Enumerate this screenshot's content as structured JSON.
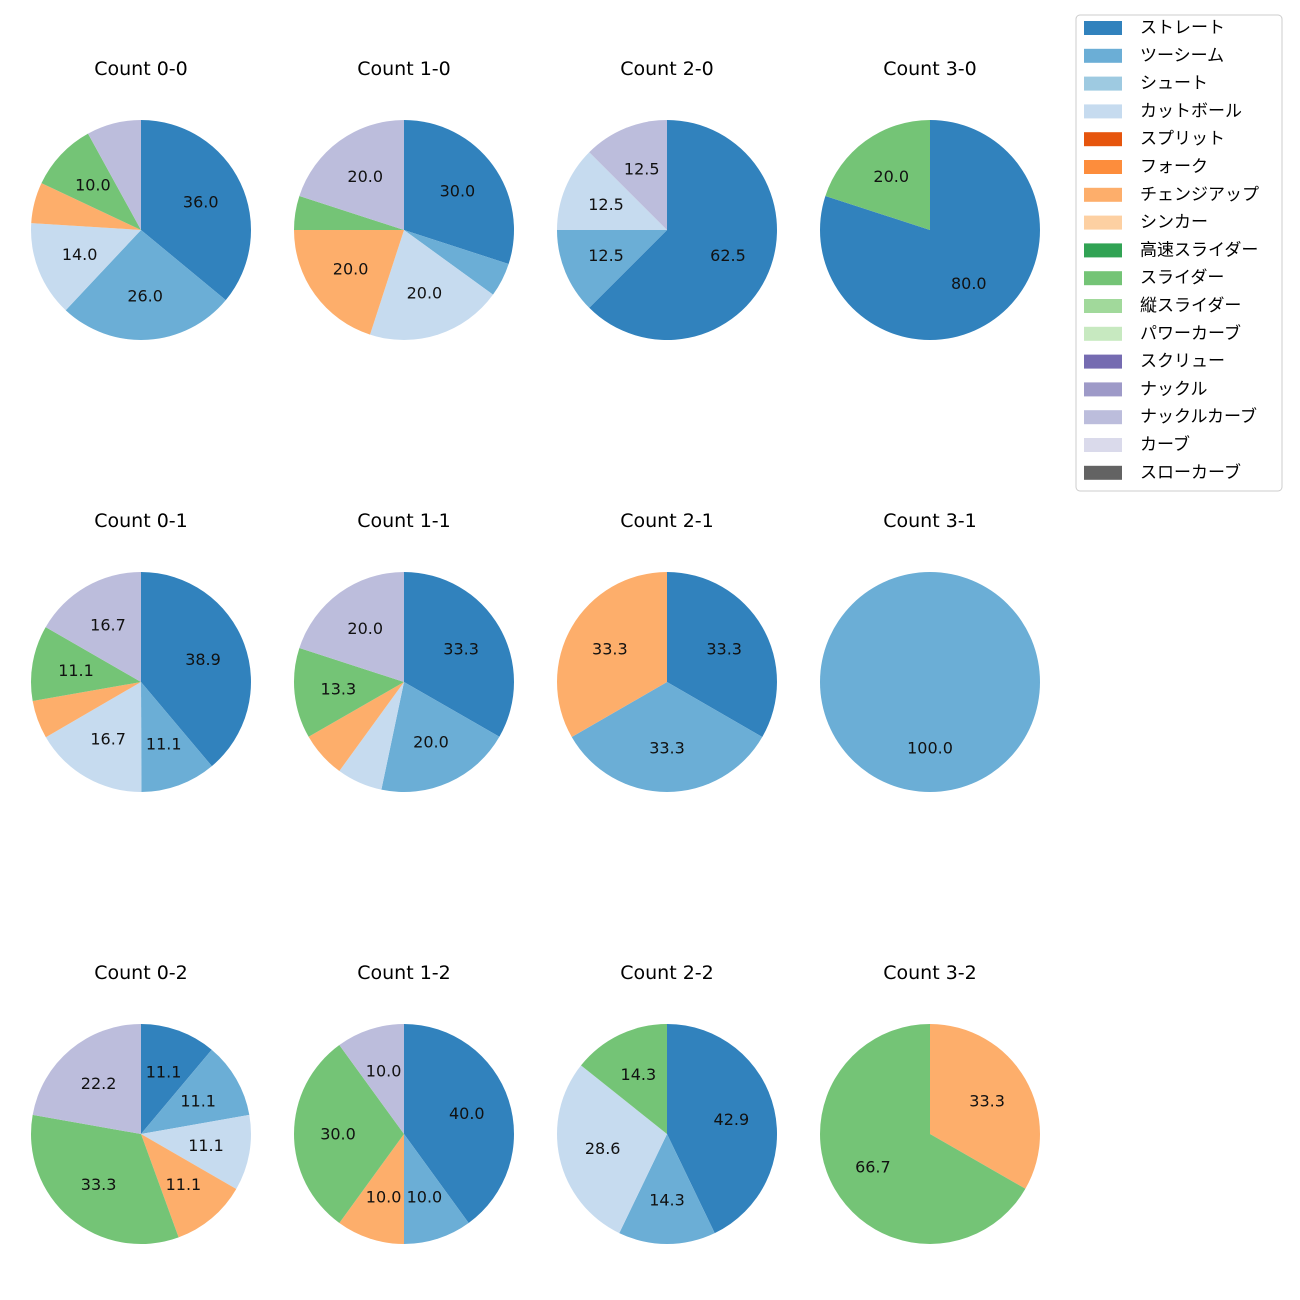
{
  "chart_data": {
    "type": "pie",
    "pitch_types": [
      {
        "name": "ストレート",
        "color": "#3182bd"
      },
      {
        "name": "ツーシーム",
        "color": "#6baed6"
      },
      {
        "name": "シュート",
        "color": "#9ecae1"
      },
      {
        "name": "カットボール",
        "color": "#c6dbef"
      },
      {
        "name": "スプリット",
        "color": "#e6550d"
      },
      {
        "name": "フォーク",
        "color": "#fd8d3c"
      },
      {
        "name": "チェンジアップ",
        "color": "#fdae6b"
      },
      {
        "name": "シンカー",
        "color": "#fdd0a2"
      },
      {
        "name": "高速スライダー",
        "color": "#31a354"
      },
      {
        "name": "スライダー",
        "color": "#74c476"
      },
      {
        "name": "縦スライダー",
        "color": "#a1d99b"
      },
      {
        "name": "パワーカーブ",
        "color": "#c7e9c0"
      },
      {
        "name": "スクリュー",
        "color": "#756bb1"
      },
      {
        "name": "ナックル",
        "color": "#9e9ac8"
      },
      {
        "name": "ナックルカーブ",
        "color": "#bcbddc"
      },
      {
        "name": "カーブ",
        "color": "#dadaeb"
      },
      {
        "name": "スローカーブ",
        "color": "#636363"
      }
    ],
    "legend_position": "top-right",
    "charts": [
      {
        "title": "Count 0-0",
        "slices": [
          {
            "type": "ストレート",
            "value": 36.0,
            "label": "36.0"
          },
          {
            "type": "ツーシーム",
            "value": 26.0,
            "label": "26.0"
          },
          {
            "type": "カットボール",
            "value": 14.0,
            "label": "14.0"
          },
          {
            "type": "チェンジアップ",
            "value": 6.0,
            "label": ""
          },
          {
            "type": "スライダー",
            "value": 10.0,
            "label": "10.0"
          },
          {
            "type": "ナックルカーブ",
            "value": 8.0,
            "label": ""
          }
        ]
      },
      {
        "title": "Count 1-0",
        "slices": [
          {
            "type": "ストレート",
            "value": 30.0,
            "label": "30.0"
          },
          {
            "type": "ツーシーム",
            "value": 5.0,
            "label": ""
          },
          {
            "type": "カットボール",
            "value": 20.0,
            "label": "20.0"
          },
          {
            "type": "チェンジアップ",
            "value": 20.0,
            "label": "20.0"
          },
          {
            "type": "スライダー",
            "value": 5.0,
            "label": ""
          },
          {
            "type": "ナックルカーブ",
            "value": 20.0,
            "label": "20.0"
          }
        ]
      },
      {
        "title": "Count 2-0",
        "slices": [
          {
            "type": "ストレート",
            "value": 62.5,
            "label": "62.5"
          },
          {
            "type": "ツーシーム",
            "value": 12.5,
            "label": "12.5"
          },
          {
            "type": "カットボール",
            "value": 12.5,
            "label": "12.5"
          },
          {
            "type": "ナックルカーブ",
            "value": 12.5,
            "label": "12.5"
          }
        ]
      },
      {
        "title": "Count 3-0",
        "slices": [
          {
            "type": "ストレート",
            "value": 80.0,
            "label": "80.0"
          },
          {
            "type": "スライダー",
            "value": 20.0,
            "label": "20.0"
          }
        ]
      },
      {
        "title": "Count 0-1",
        "slices": [
          {
            "type": "ストレート",
            "value": 38.9,
            "label": "38.9"
          },
          {
            "type": "ツーシーム",
            "value": 11.1,
            "label": "11.1"
          },
          {
            "type": "カットボール",
            "value": 16.7,
            "label": "16.7"
          },
          {
            "type": "チェンジアップ",
            "value": 5.6,
            "label": ""
          },
          {
            "type": "スライダー",
            "value": 11.1,
            "label": "11.1"
          },
          {
            "type": "ナックルカーブ",
            "value": 16.7,
            "label": "16.7"
          }
        ]
      },
      {
        "title": "Count 1-1",
        "slices": [
          {
            "type": "ストレート",
            "value": 33.3,
            "label": "33.3"
          },
          {
            "type": "ツーシーム",
            "value": 20.0,
            "label": "20.0"
          },
          {
            "type": "カットボール",
            "value": 6.7,
            "label": ""
          },
          {
            "type": "チェンジアップ",
            "value": 6.7,
            "label": ""
          },
          {
            "type": "スライダー",
            "value": 13.3,
            "label": "13.3"
          },
          {
            "type": "ナックルカーブ",
            "value": 20.0,
            "label": "20.0"
          }
        ]
      },
      {
        "title": "Count 2-1",
        "slices": [
          {
            "type": "ストレート",
            "value": 33.3,
            "label": "33.3"
          },
          {
            "type": "ツーシーム",
            "value": 33.3,
            "label": "33.3"
          },
          {
            "type": "チェンジアップ",
            "value": 33.3,
            "label": "33.3"
          }
        ]
      },
      {
        "title": "Count 3-1",
        "slices": [
          {
            "type": "ツーシーム",
            "value": 100.0,
            "label": "100.0"
          }
        ]
      },
      {
        "title": "Count 0-2",
        "slices": [
          {
            "type": "ストレート",
            "value": 11.1,
            "label": "11.1"
          },
          {
            "type": "ツーシーム",
            "value": 11.1,
            "label": "11.1"
          },
          {
            "type": "カットボール",
            "value": 11.1,
            "label": "11.1"
          },
          {
            "type": "チェンジアップ",
            "value": 11.1,
            "label": "11.1"
          },
          {
            "type": "スライダー",
            "value": 33.3,
            "label": "33.3"
          },
          {
            "type": "ナックルカーブ",
            "value": 22.2,
            "label": "22.2"
          }
        ]
      },
      {
        "title": "Count 1-2",
        "slices": [
          {
            "type": "ストレート",
            "value": 40.0,
            "label": "40.0"
          },
          {
            "type": "ツーシーム",
            "value": 10.0,
            "label": "10.0"
          },
          {
            "type": "チェンジアップ",
            "value": 10.0,
            "label": "10.0"
          },
          {
            "type": "スライダー",
            "value": 30.0,
            "label": "30.0"
          },
          {
            "type": "ナックルカーブ",
            "value": 10.0,
            "label": "10.0"
          }
        ]
      },
      {
        "title": "Count 2-2",
        "slices": [
          {
            "type": "ストレート",
            "value": 42.9,
            "label": "42.9"
          },
          {
            "type": "ツーシーム",
            "value": 14.3,
            "label": "14.3"
          },
          {
            "type": "カットボール",
            "value": 28.6,
            "label": "28.6"
          },
          {
            "type": "スライダー",
            "value": 14.3,
            "label": "14.3"
          }
        ]
      },
      {
        "title": "Count 3-2",
        "slices": [
          {
            "type": "チェンジアップ",
            "value": 33.3,
            "label": "33.3"
          },
          {
            "type": "スライダー",
            "value": 66.7,
            "label": "66.7"
          }
        ]
      }
    ]
  }
}
